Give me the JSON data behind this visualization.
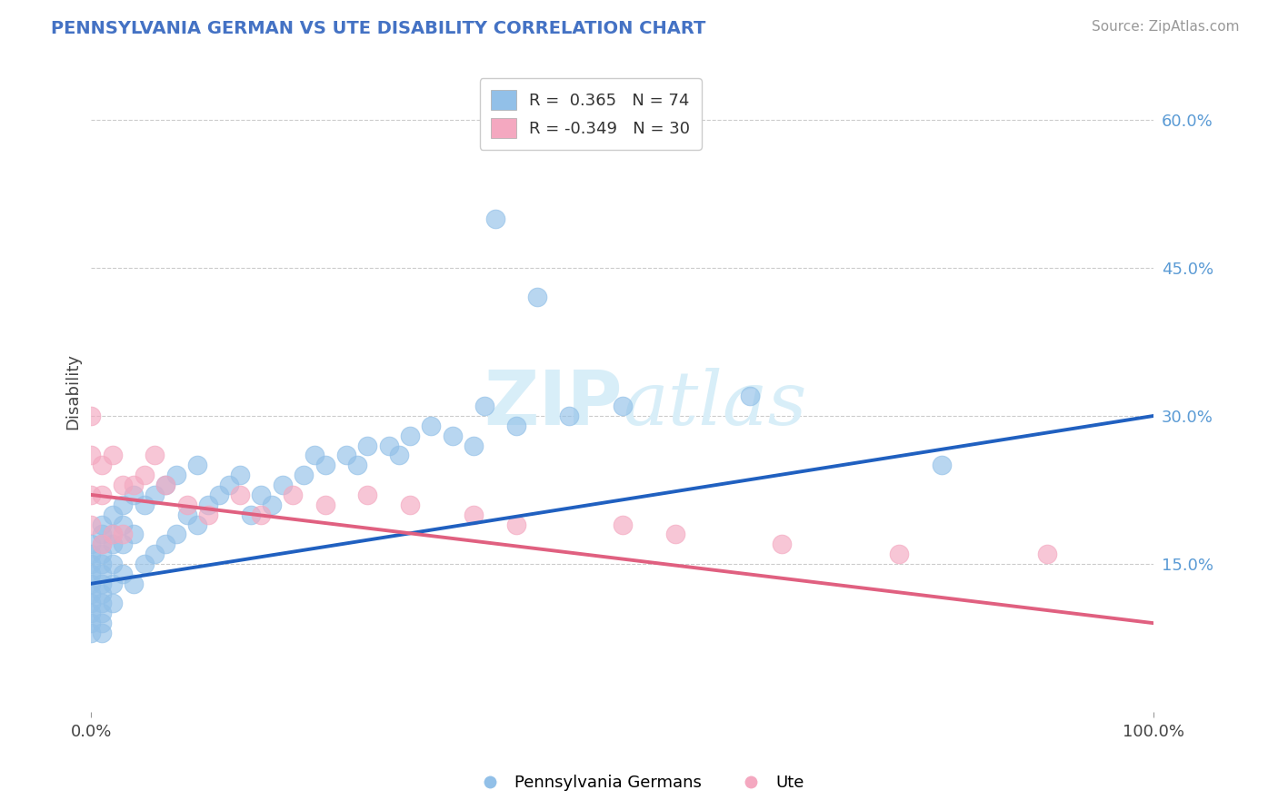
{
  "title": "PENNSYLVANIA GERMAN VS UTE DISABILITY CORRELATION CHART",
  "source": "Source: ZipAtlas.com",
  "ylabel": "Disability",
  "xlim": [
    0,
    1.0
  ],
  "ylim": [
    0.0,
    0.65
  ],
  "blue_color": "#92C0E8",
  "pink_color": "#F4A8C0",
  "blue_line_color": "#2060C0",
  "pink_line_color": "#E06080",
  "legend_r_blue": "R =  0.365",
  "legend_n_blue": "N = 74",
  "legend_r_pink": "R = -0.349",
  "legend_n_pink": "N = 30",
  "title_color": "#4472C4",
  "source_color": "#999999",
  "blue_scatter_x": [
    0.0,
    0.0,
    0.0,
    0.0,
    0.0,
    0.0,
    0.0,
    0.0,
    0.0,
    0.0,
    0.01,
    0.01,
    0.01,
    0.01,
    0.01,
    0.01,
    0.01,
    0.01,
    0.01,
    0.01,
    0.01,
    0.01,
    0.02,
    0.02,
    0.02,
    0.02,
    0.02,
    0.02,
    0.03,
    0.03,
    0.03,
    0.03,
    0.04,
    0.04,
    0.04,
    0.05,
    0.05,
    0.06,
    0.06,
    0.07,
    0.07,
    0.08,
    0.08,
    0.09,
    0.1,
    0.1,
    0.11,
    0.12,
    0.13,
    0.14,
    0.15,
    0.16,
    0.17,
    0.18,
    0.2,
    0.21,
    0.22,
    0.24,
    0.25,
    0.26,
    0.28,
    0.29,
    0.3,
    0.32,
    0.34,
    0.36,
    0.37,
    0.38,
    0.4,
    0.42,
    0.45,
    0.5,
    0.62,
    0.8
  ],
  "blue_scatter_y": [
    0.17,
    0.16,
    0.15,
    0.14,
    0.13,
    0.12,
    0.11,
    0.1,
    0.09,
    0.08,
    0.19,
    0.18,
    0.17,
    0.16,
    0.15,
    0.14,
    0.13,
    0.12,
    0.11,
    0.1,
    0.09,
    0.08,
    0.2,
    0.18,
    0.17,
    0.15,
    0.13,
    0.11,
    0.21,
    0.19,
    0.17,
    0.14,
    0.22,
    0.18,
    0.13,
    0.21,
    0.15,
    0.22,
    0.16,
    0.23,
    0.17,
    0.24,
    0.18,
    0.2,
    0.25,
    0.19,
    0.21,
    0.22,
    0.23,
    0.24,
    0.2,
    0.22,
    0.21,
    0.23,
    0.24,
    0.26,
    0.25,
    0.26,
    0.25,
    0.27,
    0.27,
    0.26,
    0.28,
    0.29,
    0.28,
    0.27,
    0.31,
    0.5,
    0.29,
    0.42,
    0.3,
    0.31,
    0.32,
    0.25
  ],
  "pink_scatter_x": [
    0.0,
    0.0,
    0.0,
    0.0,
    0.01,
    0.01,
    0.01,
    0.02,
    0.02,
    0.03,
    0.03,
    0.04,
    0.05,
    0.06,
    0.07,
    0.09,
    0.11,
    0.14,
    0.16,
    0.19,
    0.22,
    0.26,
    0.3,
    0.36,
    0.4,
    0.5,
    0.55,
    0.65,
    0.76,
    0.9
  ],
  "pink_scatter_y": [
    0.3,
    0.26,
    0.22,
    0.19,
    0.25,
    0.22,
    0.17,
    0.26,
    0.18,
    0.23,
    0.18,
    0.23,
    0.24,
    0.26,
    0.23,
    0.21,
    0.2,
    0.22,
    0.2,
    0.22,
    0.21,
    0.22,
    0.21,
    0.2,
    0.19,
    0.19,
    0.18,
    0.17,
    0.16,
    0.16
  ],
  "blue_trend_x": [
    0.0,
    1.0
  ],
  "blue_trend_y": [
    0.13,
    0.3
  ],
  "pink_trend_x": [
    0.0,
    1.0
  ],
  "pink_trend_y": [
    0.22,
    0.09
  ],
  "yticks": [
    0.15,
    0.3,
    0.45,
    0.6
  ],
  "ytick_labels": [
    "15.0%",
    "30.0%",
    "45.0%",
    "60.0%"
  ],
  "background_color": "#FFFFFF",
  "grid_color": "#CCCCCC",
  "watermark_color": "#D8EEF8",
  "watermark_fontsize": 60
}
